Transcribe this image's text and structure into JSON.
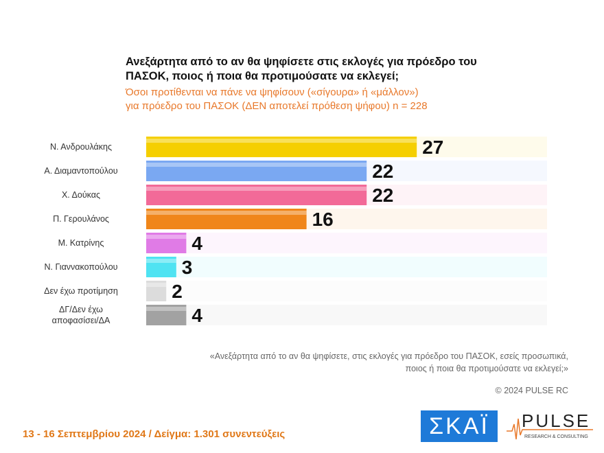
{
  "chart_data": {
    "type": "bar",
    "orientation": "horizontal",
    "title": "Ανεξάρτητα από το αν θα ψηφίσετε στις εκλογές για πρόεδρο του ΠΑΣΟΚ, ποιος ή ποια θα προτιμούσατε να εκλεγεί;",
    "subtitle_lines": [
      "Όσοι προτίθενται να πάνε να ψηφίσουν («σίγουρα» ή «μάλλον»)",
      "για πρόεδρο του ΠΑΣΟΚ   (ΔΕΝ αποτελεί πρόθεση ψήφου)   n = 228"
    ],
    "categories": [
      "Ν. Ανδρουλάκης",
      "Α. Διαμαντοπούλου",
      "Χ. Δούκας",
      "Π. Γερουλάνος",
      "Μ. Κατρίνης",
      "Ν. Γιαννακοπούλου",
      "Δεν έχω προτίμηση",
      "ΔΓ/Δεν έχω αποφασίσει/ΔΑ"
    ],
    "values": [
      27,
      22,
      22,
      16,
      4,
      3,
      2,
      4
    ],
    "colors": [
      "#f5cf00",
      "#7aa8f2",
      "#f26a98",
      "#f0861a",
      "#e07be6",
      "#4fe3f2",
      "#dcdcdc",
      "#a2a2a2"
    ],
    "xlim": [
      0,
      40
    ],
    "grid": false,
    "data_labels": true
  },
  "note_lines": [
    "«Ανεξάρτητα από το αν θα ψηφίσετε, στις εκλογές για πρόεδρο του ΠΑΣΟΚ, εσείς προσωπικά,",
    "ποιος ή ποια θα προτιμούσατε να εκλεγεί;»"
  ],
  "copyright": "© 2024 PULSE RC",
  "footer": "13 - 16 Σεπτεμβρίου 2024  /  Δείγμα:  1.301 συνεντεύξεις",
  "logos": {
    "skai": "ΣΚΑΪ",
    "pulse": "PULSE",
    "pulse_tagline": "RESEARCH & CONSULTING"
  }
}
